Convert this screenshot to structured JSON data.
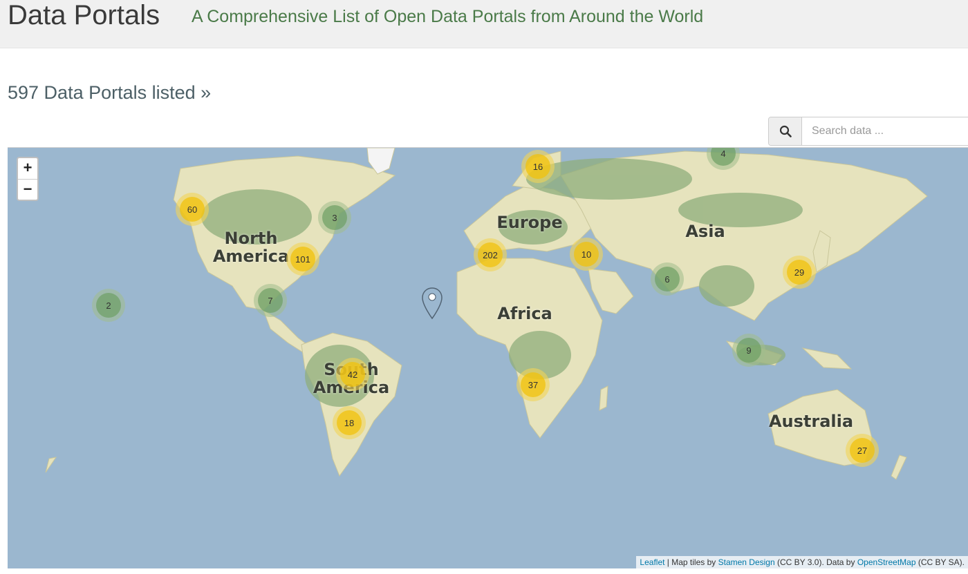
{
  "header": {
    "title": "Data Portals",
    "tagline": "A Comprehensive List of Open Data Portals from Around the World"
  },
  "portal_count_link": "597 Data Portals listed »",
  "search": {
    "placeholder": "Search data ...",
    "icon": "search-icon"
  },
  "map": {
    "zoom_in": "+",
    "zoom_out": "−",
    "continent_labels": {
      "north_america": "North\nAmerica",
      "europe": "Europe",
      "asia": "Asia",
      "africa": "Africa",
      "south_america": "South\nAmerica",
      "australia": "Australia"
    },
    "clusters": {
      "scandinavia": "16",
      "russia": "4",
      "us_west": "60",
      "canada_east": "3",
      "us_east": "101",
      "western_europe": "202",
      "turkey": "10",
      "japan": "29",
      "south_asia": "6",
      "hawaii": "2",
      "mexico": "7",
      "southeast_asia": "9",
      "south_america_north": "42",
      "southern_africa": "37",
      "south_america_south": "18",
      "australia": "27"
    },
    "attribution": {
      "leaflet": "Leaflet",
      "sep1": " | Map tiles by ",
      "stamen": "Stamen Design",
      "cc_by": " (CC BY 3.0). Data by ",
      "osm": "OpenStreetMap",
      "cc_by_sa": " (CC BY SA)."
    }
  },
  "colors": {
    "ocean": "#9bb7cf",
    "land": "#e6e3bd",
    "forest": "#8fae7c",
    "cluster_large": "#f0c20c",
    "cluster_small": "#6ea064",
    "tagline": "#4a7a48"
  }
}
